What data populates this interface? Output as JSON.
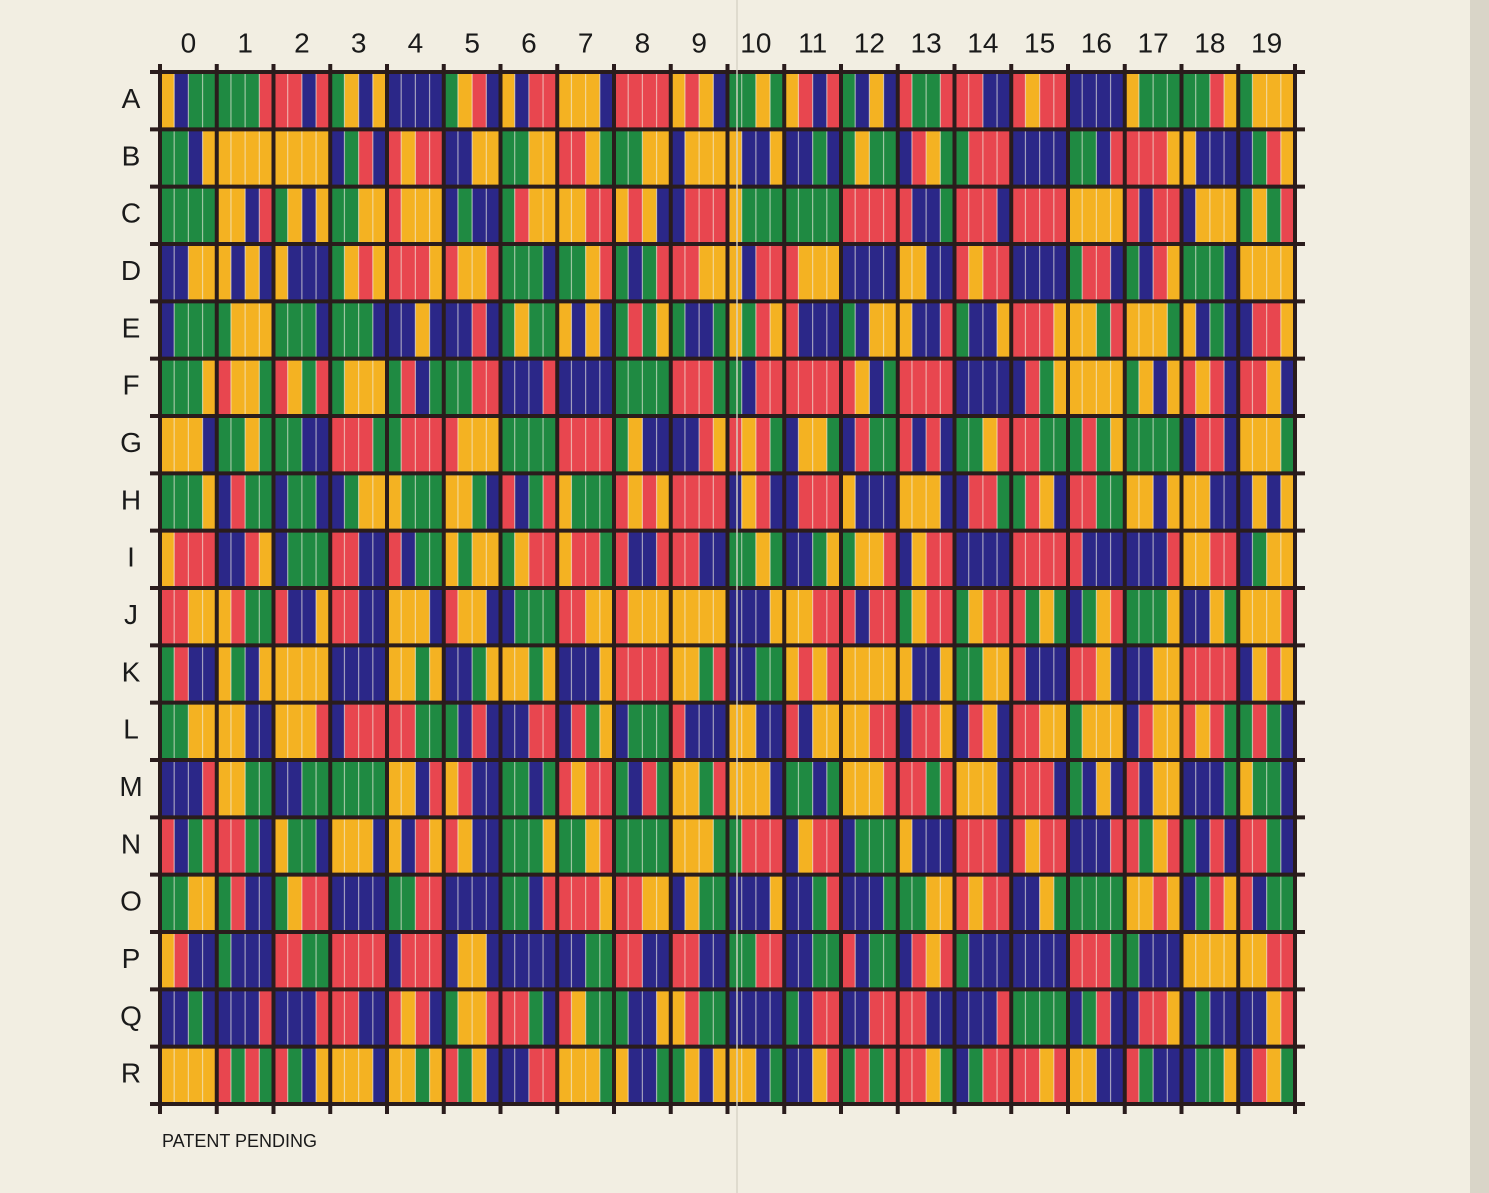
{
  "column_labels": [
    "0",
    "1",
    "2",
    "3",
    "4",
    "5",
    "6",
    "7",
    "8",
    "9",
    "10",
    "11",
    "12",
    "13",
    "14",
    "15",
    "16",
    "17",
    "18",
    "19"
  ],
  "row_labels": [
    "A",
    "B",
    "C",
    "D",
    "E",
    "F",
    "G",
    "H",
    "I",
    "J",
    "K",
    "L",
    "M",
    "N",
    "O",
    "P",
    "Q",
    "R"
  ],
  "footer": "PATENT PENDING"
}
